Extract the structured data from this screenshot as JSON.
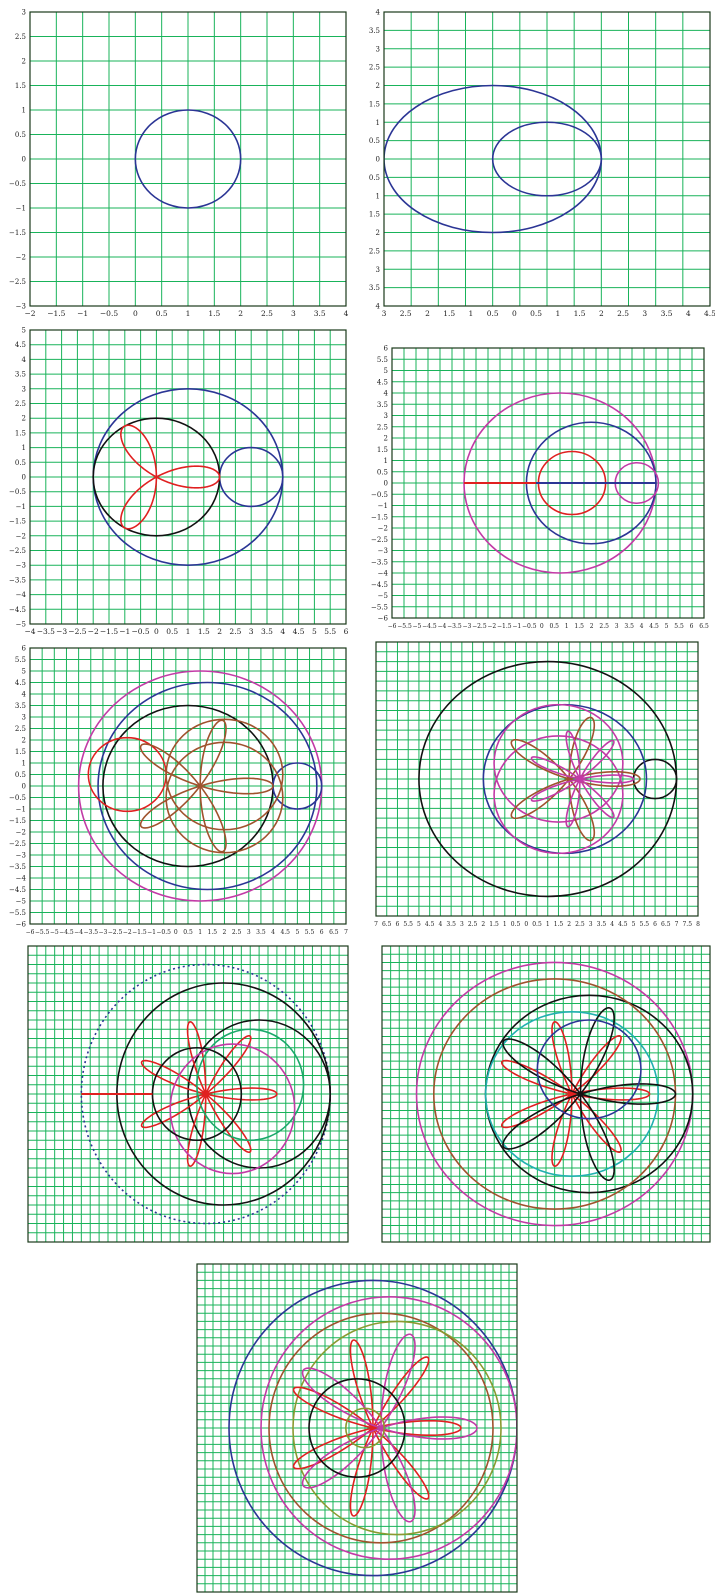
{
  "colors": {
    "grid": "#19b35a",
    "frame": "#1a3a1a",
    "blue": "#2b3595",
    "red": "#e02020",
    "black": "#111111",
    "magenta": "#c23aa6",
    "brown": "#a0522d",
    "green": "#1aa86a",
    "cyan": "#20b0b0",
    "olive": "#8a9a30"
  },
  "chart_data": [
    {
      "type": "line",
      "title": "",
      "xlim": [
        -2,
        4
      ],
      "ylim": [
        -3,
        3
      ],
      "x_ticks": [
        "−2",
        "−1.5",
        "−1",
        "−0.5",
        "0",
        "0.5",
        "1",
        "1.5",
        "2",
        "2.5",
        "3",
        "3.5",
        "4"
      ],
      "y_ticks": [
        "3",
        "2.5",
        "2",
        "1.5",
        "1",
        "0.5",
        "0",
        "−0.5",
        "−1",
        "−1.5",
        "−2",
        "−2.5",
        "−3"
      ],
      "grid": true,
      "series": [
        {
          "shape": "circle",
          "center": [
            1,
            0
          ],
          "radius": 1,
          "color": "blue"
        }
      ]
    },
    {
      "type": "line",
      "title": "",
      "xlim": [
        -1,
        5
      ],
      "ylim": [
        -4,
        4
      ],
      "x_ticks": [
        "3",
        "2.5",
        "2",
        "1.5",
        "1",
        "0.5",
        "0",
        "0.5",
        "1",
        "1.5",
        "2",
        "2.5",
        "3",
        "3.5",
        "4",
        "4.5"
      ],
      "y_ticks": [
        "4",
        "3.5",
        "3",
        "2.5",
        "2",
        "1.5",
        "1",
        "0.5",
        "0",
        "0.5",
        "1",
        "1.5",
        "2",
        "2.5",
        "3",
        "3.5",
        "4"
      ],
      "grid": true,
      "series": [
        {
          "shape": "circle",
          "center": [
            1,
            0
          ],
          "radius": 2,
          "color": "blue"
        },
        {
          "shape": "circle",
          "center": [
            2,
            0
          ],
          "radius": 1,
          "color": "blue"
        }
      ]
    },
    {
      "type": "line",
      "title": "",
      "xlim": [
        -4,
        6
      ],
      "ylim": [
        -5,
        5
      ],
      "x_ticks": [
        "−4",
        "−3.5",
        "−3",
        "−2.5",
        "−2",
        "−1.5",
        "−1",
        "−0.5",
        "0",
        "0.5",
        "1",
        "1.5",
        "2",
        "2.5",
        "3",
        "3.5",
        "4",
        "4.5",
        "5",
        "5.5",
        "6"
      ],
      "y_ticks": [
        "5",
        "4.5",
        "4",
        "3.5",
        "3",
        "2.5",
        "2",
        "1.5",
        "1",
        "0.5",
        "0",
        "−0.5",
        "−1",
        "−1.5",
        "−2",
        "−2.5",
        "−3",
        "−3.5",
        "−4",
        "−4.5",
        "−5"
      ],
      "grid": true,
      "series": [
        {
          "shape": "circle",
          "center": [
            1,
            0
          ],
          "radius": 3,
          "color": "blue"
        },
        {
          "shape": "circle",
          "center": [
            3,
            0
          ],
          "radius": 1,
          "color": "blue"
        },
        {
          "shape": "circle",
          "center": [
            0,
            0
          ],
          "radius": 2,
          "color": "black"
        },
        {
          "shape": "rose3",
          "center": [
            0,
            0
          ],
          "radius": 2,
          "color": "red"
        }
      ]
    },
    {
      "type": "line",
      "title": "",
      "xlim": [
        -6,
        7
      ],
      "ylim": [
        -6,
        6
      ],
      "x_ticks": [
        "−6",
        "−5.5",
        "−5",
        "−4.5",
        "−4",
        "−3.5",
        "−3",
        "−2.5",
        "−2",
        "−1.5",
        "−1",
        "−0.5",
        "0",
        "0.5",
        "1",
        "1.5",
        "2",
        "2.5",
        "3",
        "3.5",
        "4",
        "4.5",
        "5",
        "5.5",
        "6",
        "6.5"
      ],
      "y_ticks": [
        "6",
        "5.5",
        "5",
        "4.5",
        "4",
        "3.5",
        "3",
        "2.5",
        "2",
        "1.5",
        "1",
        "0.5",
        "0",
        "−0.5",
        "−1",
        "−1.5",
        "−2",
        "−2.5",
        "−3",
        "−3.5",
        "−4",
        "−4.5",
        "−5",
        "−5.5",
        "−6"
      ],
      "grid": true,
      "series": [
        {
          "shape": "circle",
          "center": [
            1,
            0
          ],
          "radius": 4,
          "color": "magenta"
        },
        {
          "shape": "circle",
          "center": [
            2.3,
            0
          ],
          "radius": 2.7,
          "color": "blue"
        },
        {
          "shape": "circle",
          "center": [
            1.5,
            0
          ],
          "radius": 1.4,
          "color": "red"
        },
        {
          "shape": "circle",
          "center": [
            4.2,
            0
          ],
          "radius": 0.9,
          "color": "magenta"
        },
        {
          "shape": "segment",
          "from": [
            -3,
            0
          ],
          "to": [
            0,
            0
          ],
          "color": "red"
        },
        {
          "shape": "segment",
          "from": [
            0,
            0
          ],
          "to": [
            5,
            0
          ],
          "color": "blue"
        }
      ]
    },
    {
      "type": "line",
      "title": "",
      "xlim": [
        -6,
        7
      ],
      "ylim": [
        -6,
        6
      ],
      "x_ticks": [
        "−6",
        "−5.5",
        "−5",
        "−4.5",
        "−4",
        "−3.5",
        "−3",
        "−2.5",
        "−2",
        "−1.5",
        "−1",
        "−0.5",
        "0",
        "0.5",
        "1",
        "1.5",
        "2",
        "2.5",
        "3",
        "3.5",
        "4",
        "4.5",
        "5",
        "5.5",
        "6",
        "6.5",
        "7"
      ],
      "y_ticks": [
        "6",
        "5.5",
        "5",
        "4.5",
        "4",
        "3.5",
        "3",
        "2.5",
        "2",
        "1.5",
        "1",
        "0.5",
        "0",
        "−0.5",
        "−1",
        "−1.5",
        "−2",
        "−2.5",
        "−3",
        "−3.5",
        "−4",
        "−4.5",
        "−5",
        "−5.5",
        "−6"
      ],
      "grid": true,
      "series": [
        {
          "shape": "circle",
          "center": [
            1,
            0
          ],
          "radius": 5,
          "color": "magenta"
        },
        {
          "shape": "circle",
          "center": [
            1.3,
            0
          ],
          "radius": 4.5,
          "color": "blue"
        },
        {
          "shape": "circle",
          "center": [
            0.5,
            0
          ],
          "radius": 3.5,
          "color": "black"
        },
        {
          "shape": "circle",
          "center": [
            5,
            0
          ],
          "radius": 1,
          "color": "blue"
        },
        {
          "shape": "circle",
          "center": [
            -2,
            0.5
          ],
          "radius": 1.6,
          "color": "red"
        },
        {
          "shape": "rose5",
          "center": [
            1,
            0
          ],
          "radius": 3,
          "color": "brown"
        },
        {
          "shape": "circle",
          "center": [
            2,
            0.5
          ],
          "radius": 2.4,
          "color": "brown"
        },
        {
          "shape": "circle",
          "center": [
            2,
            -0.5
          ],
          "radius": 2.4,
          "color": "brown"
        }
      ]
    },
    {
      "type": "line",
      "title": "",
      "xlim": [
        -7,
        8
      ],
      "ylim": [
        -7,
        7
      ],
      "x_ticks": [
        "7",
        "6.5",
        "6",
        "5.5",
        "5",
        "4.5",
        "4",
        "3.5",
        "3",
        "2.5",
        "2",
        "1.5",
        "1",
        "0.5",
        "0",
        "0.5",
        "1",
        "1.5",
        "2",
        "2.5",
        "3",
        "3.5",
        "4",
        "4.5",
        "5",
        "5.5",
        "6",
        "6.5",
        "7",
        "7.5",
        "8"
      ],
      "y_ticks": [],
      "grid": true,
      "series": [
        {
          "shape": "circle",
          "center": [
            1,
            0
          ],
          "radius": 6,
          "color": "black"
        },
        {
          "shape": "circle",
          "center": [
            6,
            0
          ],
          "radius": 1,
          "color": "black"
        },
        {
          "shape": "circle",
          "center": [
            1.8,
            0
          ],
          "radius": 3.8,
          "color": "blue"
        },
        {
          "shape": "circle",
          "center": [
            1.5,
            0.8
          ],
          "radius": 3,
          "color": "magenta"
        },
        {
          "shape": "circle",
          "center": [
            1.5,
            -0.8
          ],
          "radius": 3,
          "color": "magenta"
        },
        {
          "shape": "rose5",
          "center": [
            2,
            0
          ],
          "radius": 3.3,
          "color": "brown"
        },
        {
          "shape": "rose7",
          "center": [
            2.5,
            0
          ],
          "radius": 2.5,
          "color": "magenta"
        }
      ]
    },
    {
      "type": "line",
      "title": "",
      "xlim": [
        -9,
        9
      ],
      "ylim": [
        -8,
        8
      ],
      "x_ticks": [],
      "y_ticks": [],
      "grid": true,
      "series": [
        {
          "shape": "circle",
          "center": [
            1,
            0
          ],
          "radius": 7,
          "color": "blue",
          "dash": true
        },
        {
          "shape": "circle",
          "center": [
            2,
            0
          ],
          "radius": 6,
          "color": "black"
        },
        {
          "shape": "circle",
          "center": [
            4,
            0
          ],
          "radius": 4,
          "color": "black"
        },
        {
          "shape": "rose7",
          "center": [
            1,
            0
          ],
          "radius": 4,
          "color": "red"
        },
        {
          "shape": "circle",
          "center": [
            3.5,
            0.5
          ],
          "radius": 3,
          "color": "green"
        },
        {
          "shape": "circle",
          "center": [
            2.5,
            -0.8
          ],
          "radius": 3.5,
          "color": "magenta"
        },
        {
          "shape": "circle",
          "center": [
            0.5,
            0
          ],
          "radius": 2.5,
          "color": "black"
        },
        {
          "shape": "segment",
          "from": [
            -6,
            0
          ],
          "to": [
            -2,
            0
          ],
          "color": "red"
        }
      ]
    },
    {
      "type": "line",
      "title": "",
      "xlim": [
        -9,
        10
      ],
      "ylim": [
        -9,
        9
      ],
      "x_ticks": [],
      "y_ticks": [],
      "grid": true,
      "series": [
        {
          "shape": "circle",
          "center": [
            1,
            0
          ],
          "radius": 8,
          "color": "magenta"
        },
        {
          "shape": "circle",
          "center": [
            3,
            0
          ],
          "radius": 6,
          "color": "black"
        },
        {
          "shape": "circle",
          "center": [
            2,
            0
          ],
          "radius": 5,
          "color": "cyan"
        },
        {
          "shape": "circle",
          "center": [
            1,
            0
          ],
          "radius": 7,
          "color": "brown"
        },
        {
          "shape": "rose7",
          "center": [
            2,
            0
          ],
          "radius": 4.5,
          "color": "red"
        },
        {
          "shape": "rose5",
          "center": [
            2.5,
            0
          ],
          "radius": 5.5,
          "color": "black"
        },
        {
          "shape": "circle",
          "center": [
            3,
            1.5
          ],
          "radius": 3,
          "color": "blue"
        }
      ]
    },
    {
      "type": "line",
      "title": "",
      "xlim": [
        -10,
        10
      ],
      "ylim": [
        -10,
        10
      ],
      "x_ticks": [],
      "y_ticks": [],
      "grid": true,
      "series": [
        {
          "shape": "circle",
          "center": [
            1,
            0
          ],
          "radius": 9,
          "color": "blue"
        },
        {
          "shape": "circle",
          "center": [
            2,
            0
          ],
          "radius": 8,
          "color": "magenta"
        },
        {
          "shape": "circle",
          "center": [
            1.5,
            0
          ],
          "radius": 7,
          "color": "brown"
        },
        {
          "shape": "circle",
          "center": [
            2.5,
            0
          ],
          "radius": 6.5,
          "color": "olive"
        },
        {
          "shape": "rose7",
          "center": [
            1,
            0
          ],
          "radius": 5.5,
          "color": "red"
        },
        {
          "shape": "rose5",
          "center": [
            1.5,
            0
          ],
          "radius": 6,
          "color": "magenta"
        },
        {
          "shape": "circle",
          "center": [
            0,
            0
          ],
          "radius": 3,
          "color": "black"
        },
        {
          "shape": "circle",
          "center": [
            0.5,
            0
          ],
          "radius": 1.2,
          "color": "olive"
        }
      ]
    }
  ]
}
